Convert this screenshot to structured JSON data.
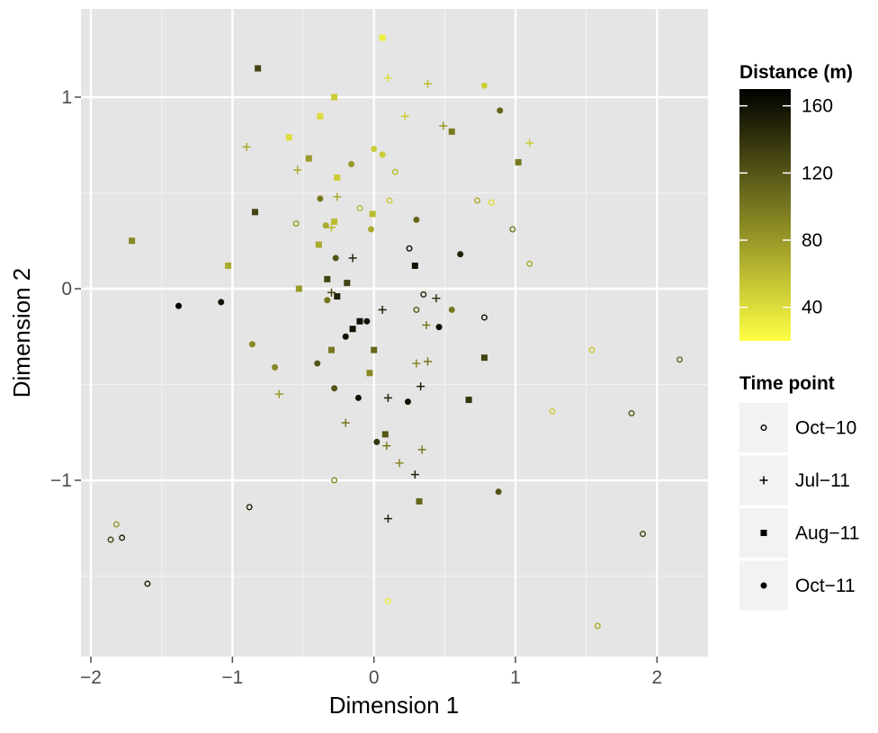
{
  "chart_data": {
    "type": "scatter",
    "xlabel": "Dimension 1",
    "ylabel": "Dimension 2",
    "xlim": [
      -2.07,
      2.36
    ],
    "ylim": [
      -1.92,
      1.46
    ],
    "x_ticks": [
      -2,
      -1,
      0,
      1,
      2
    ],
    "x_tick_labels": [
      "−2",
      "−1",
      "0",
      "1",
      "2"
    ],
    "y_ticks": [
      -1,
      0,
      1
    ],
    "y_tick_labels": [
      "−1",
      "0",
      "1"
    ],
    "grid": true,
    "color_legend": {
      "title": "Distance (m)",
      "min": 20,
      "max": 170,
      "ticks": [
        40,
        80,
        120,
        160
      ],
      "tick_labels": [
        "40",
        "80",
        "120",
        "160"
      ],
      "low_color": "#ffff44",
      "high_color": "#000000",
      "position": "right"
    },
    "shape_legend": {
      "title": "Time point",
      "position": "right"
    },
    "series": [
      {
        "name": "Oct−10",
        "shape": "circle-open",
        "points": [
          [
            -0.55,
            0.34,
            80
          ],
          [
            0.25,
            0.21,
            160
          ],
          [
            0.35,
            -0.03,
            150
          ],
          [
            0.3,
            -0.11,
            120
          ],
          [
            0.15,
            0.61,
            60
          ],
          [
            0.11,
            0.46,
            50
          ],
          [
            0.73,
            0.46,
            70
          ],
          [
            0.83,
            0.45,
            40
          ],
          [
            0.98,
            0.31,
            100
          ],
          [
            1.1,
            0.13,
            70
          ],
          [
            0.78,
            -0.15,
            160
          ],
          [
            1.54,
            -0.32,
            50
          ],
          [
            2.16,
            -0.37,
            110
          ],
          [
            1.26,
            -0.64,
            50
          ],
          [
            1.82,
            -0.65,
            120
          ],
          [
            -0.28,
            -1.0,
            90
          ],
          [
            -0.88,
            -1.14,
            150
          ],
          [
            -1.82,
            -1.23,
            80
          ],
          [
            -1.86,
            -1.31,
            130
          ],
          [
            -1.78,
            -1.3,
            150
          ],
          [
            -1.6,
            -1.54,
            150
          ],
          [
            1.9,
            -1.28,
            130
          ],
          [
            1.58,
            -1.76,
            70
          ],
          [
            0.1,
            -1.63,
            30
          ],
          [
            -0.1,
            0.42,
            60
          ]
        ]
      },
      {
        "name": "Jul−11",
        "shape": "plus",
        "points": [
          [
            0.1,
            1.1,
            40
          ],
          [
            0.38,
            1.07,
            60
          ],
          [
            0.22,
            0.9,
            50
          ],
          [
            0.49,
            0.85,
            80
          ],
          [
            -0.9,
            0.74,
            70
          ],
          [
            1.1,
            0.76,
            50
          ],
          [
            -0.54,
            0.62,
            70
          ],
          [
            -0.26,
            0.48,
            70
          ],
          [
            -0.3,
            0.32,
            60
          ],
          [
            -0.15,
            0.16,
            150
          ],
          [
            -0.3,
            -0.02,
            130
          ],
          [
            0.06,
            -0.11,
            150
          ],
          [
            0.44,
            -0.05,
            140
          ],
          [
            0.37,
            -0.19,
            100
          ],
          [
            0.38,
            -0.38,
            100
          ],
          [
            0.3,
            -0.39,
            90
          ],
          [
            -0.67,
            -0.55,
            80
          ],
          [
            -0.2,
            -0.7,
            100
          ],
          [
            0.1,
            -0.57,
            150
          ],
          [
            0.33,
            -0.51,
            150
          ],
          [
            0.09,
            -0.82,
            100
          ],
          [
            0.34,
            -0.84,
            100
          ],
          [
            0.18,
            -0.91,
            90
          ],
          [
            0.29,
            -0.97,
            150
          ],
          [
            0.1,
            -1.2,
            150
          ]
        ]
      },
      {
        "name": "Aug−11",
        "shape": "square",
        "points": [
          [
            0.06,
            1.31,
            30
          ],
          [
            -0.82,
            1.15,
            130
          ],
          [
            -0.28,
            1.0,
            50
          ],
          [
            -0.38,
            0.9,
            40
          ],
          [
            -0.6,
            0.79,
            40
          ],
          [
            -0.46,
            0.68,
            80
          ],
          [
            0.55,
            0.82,
            100
          ],
          [
            1.02,
            0.66,
            100
          ],
          [
            -0.26,
            0.58,
            50
          ],
          [
            -0.01,
            0.39,
            60
          ],
          [
            -0.28,
            0.35,
            60
          ],
          [
            -0.39,
            0.23,
            70
          ],
          [
            -1.71,
            0.25,
            90
          ],
          [
            -1.03,
            0.12,
            70
          ],
          [
            -0.84,
            0.4,
            130
          ],
          [
            -0.53,
            0.0,
            80
          ],
          [
            -0.33,
            0.05,
            130
          ],
          [
            -0.19,
            0.03,
            130
          ],
          [
            -0.26,
            -0.04,
            150
          ],
          [
            -0.1,
            -0.17,
            160
          ],
          [
            -0.15,
            -0.21,
            160
          ],
          [
            0.0,
            -0.32,
            110
          ],
          [
            -0.3,
            -0.32,
            100
          ],
          [
            -0.03,
            -0.44,
            90
          ],
          [
            0.29,
            0.12,
            160
          ],
          [
            0.78,
            -0.36,
            130
          ],
          [
            0.67,
            -0.58,
            140
          ],
          [
            0.08,
            -0.76,
            120
          ],
          [
            0.32,
            -1.11,
            110
          ]
        ]
      },
      {
        "name": "Oct−11",
        "shape": "circle",
        "points": [
          [
            0.78,
            1.06,
            50
          ],
          [
            0.89,
            0.93,
            110
          ],
          [
            0.0,
            0.73,
            50
          ],
          [
            0.06,
            0.7,
            50
          ],
          [
            -0.16,
            0.65,
            80
          ],
          [
            -0.38,
            0.47,
            100
          ],
          [
            -0.34,
            0.33,
            70
          ],
          [
            -0.02,
            0.31,
            70
          ],
          [
            0.3,
            0.36,
            110
          ],
          [
            -0.27,
            0.16,
            120
          ],
          [
            0.61,
            0.18,
            150
          ],
          [
            -1.38,
            -0.09,
            170
          ],
          [
            -1.08,
            -0.07,
            160
          ],
          [
            0.55,
            -0.11,
            100
          ],
          [
            -0.33,
            -0.06,
            100
          ],
          [
            -0.05,
            -0.17,
            160
          ],
          [
            0.46,
            -0.2,
            160
          ],
          [
            -0.2,
            -0.25,
            160
          ],
          [
            -0.86,
            -0.29,
            90
          ],
          [
            -0.7,
            -0.41,
            90
          ],
          [
            -0.4,
            -0.39,
            120
          ],
          [
            -0.28,
            -0.52,
            120
          ],
          [
            -0.11,
            -0.57,
            160
          ],
          [
            0.24,
            -0.59,
            160
          ],
          [
            0.02,
            -0.8,
            140
          ],
          [
            0.88,
            -1.06,
            120
          ]
        ]
      }
    ]
  }
}
